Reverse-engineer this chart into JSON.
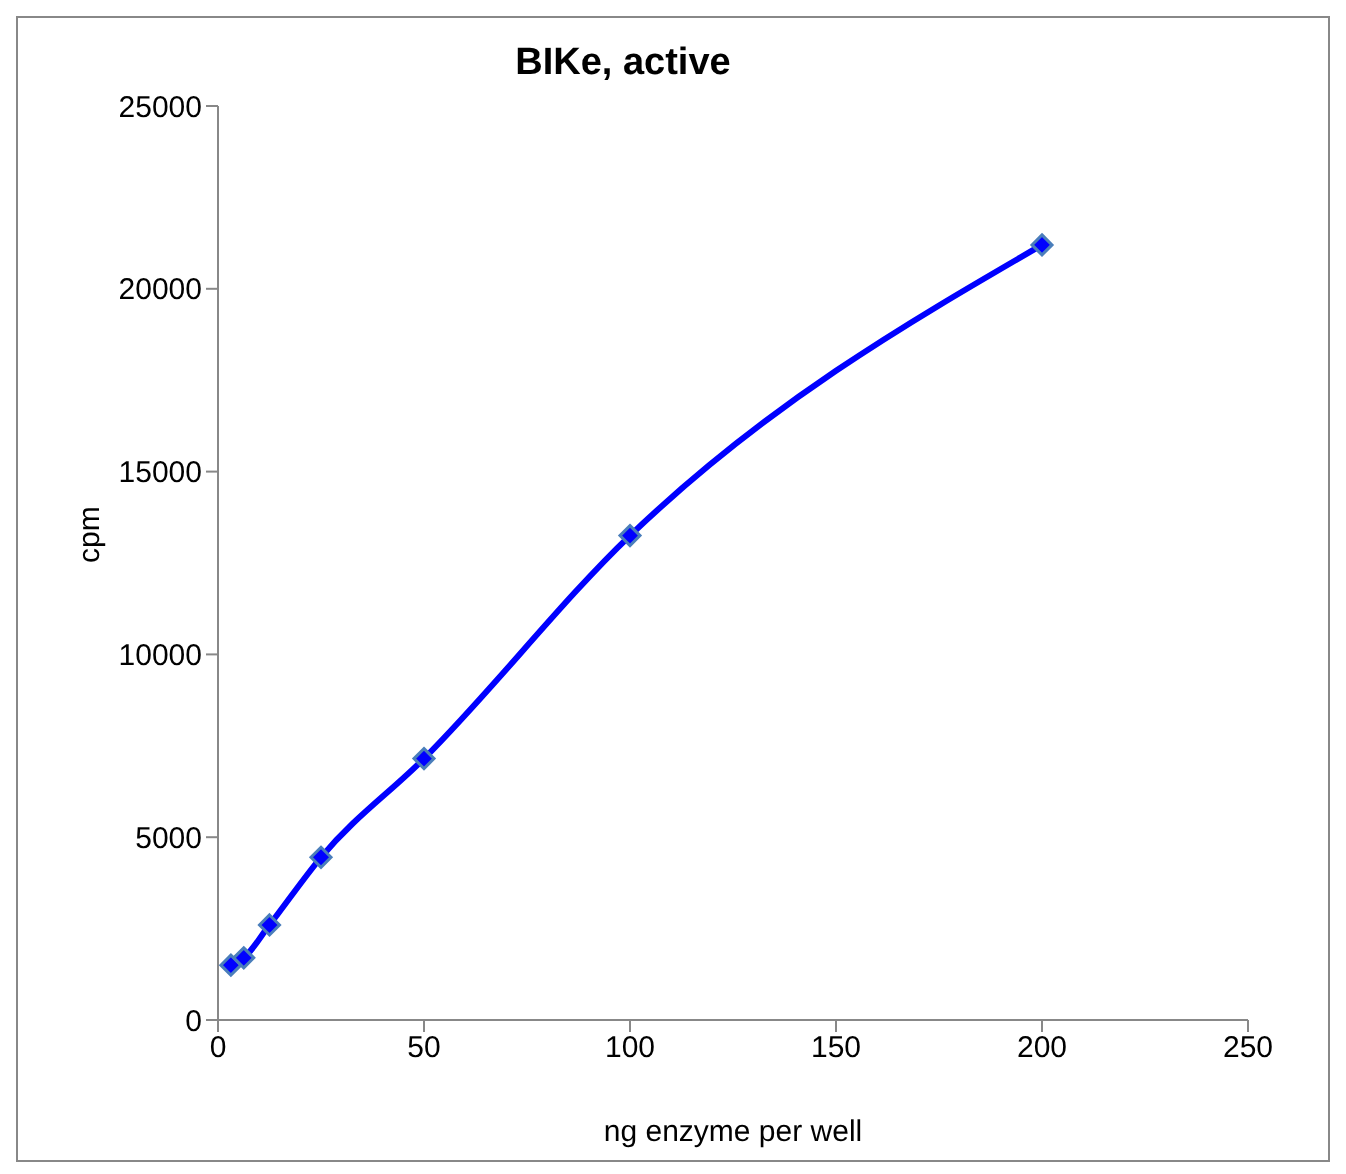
{
  "chart_data": {
    "type": "line",
    "title": "BIKe, active",
    "xlabel": "ng enzyme per well",
    "ylabel": "cpm",
    "x": [
      3.125,
      6.25,
      12.5,
      25,
      50,
      100,
      200
    ],
    "series": [
      {
        "color": "#0000ff",
        "values": [
          1500,
          1700,
          2600,
          4450,
          7150,
          13250,
          21200
        ]
      }
    ],
    "xlim": [
      0,
      250
    ],
    "xticks": [
      0,
      50,
      100,
      150,
      200,
      250
    ],
    "ylim": [
      0,
      25000
    ],
    "yticks": [
      0,
      5000,
      10000,
      15000,
      20000,
      25000
    ],
    "grid": false,
    "legend": false,
    "marker": "diamond",
    "line_style": "solid"
  }
}
